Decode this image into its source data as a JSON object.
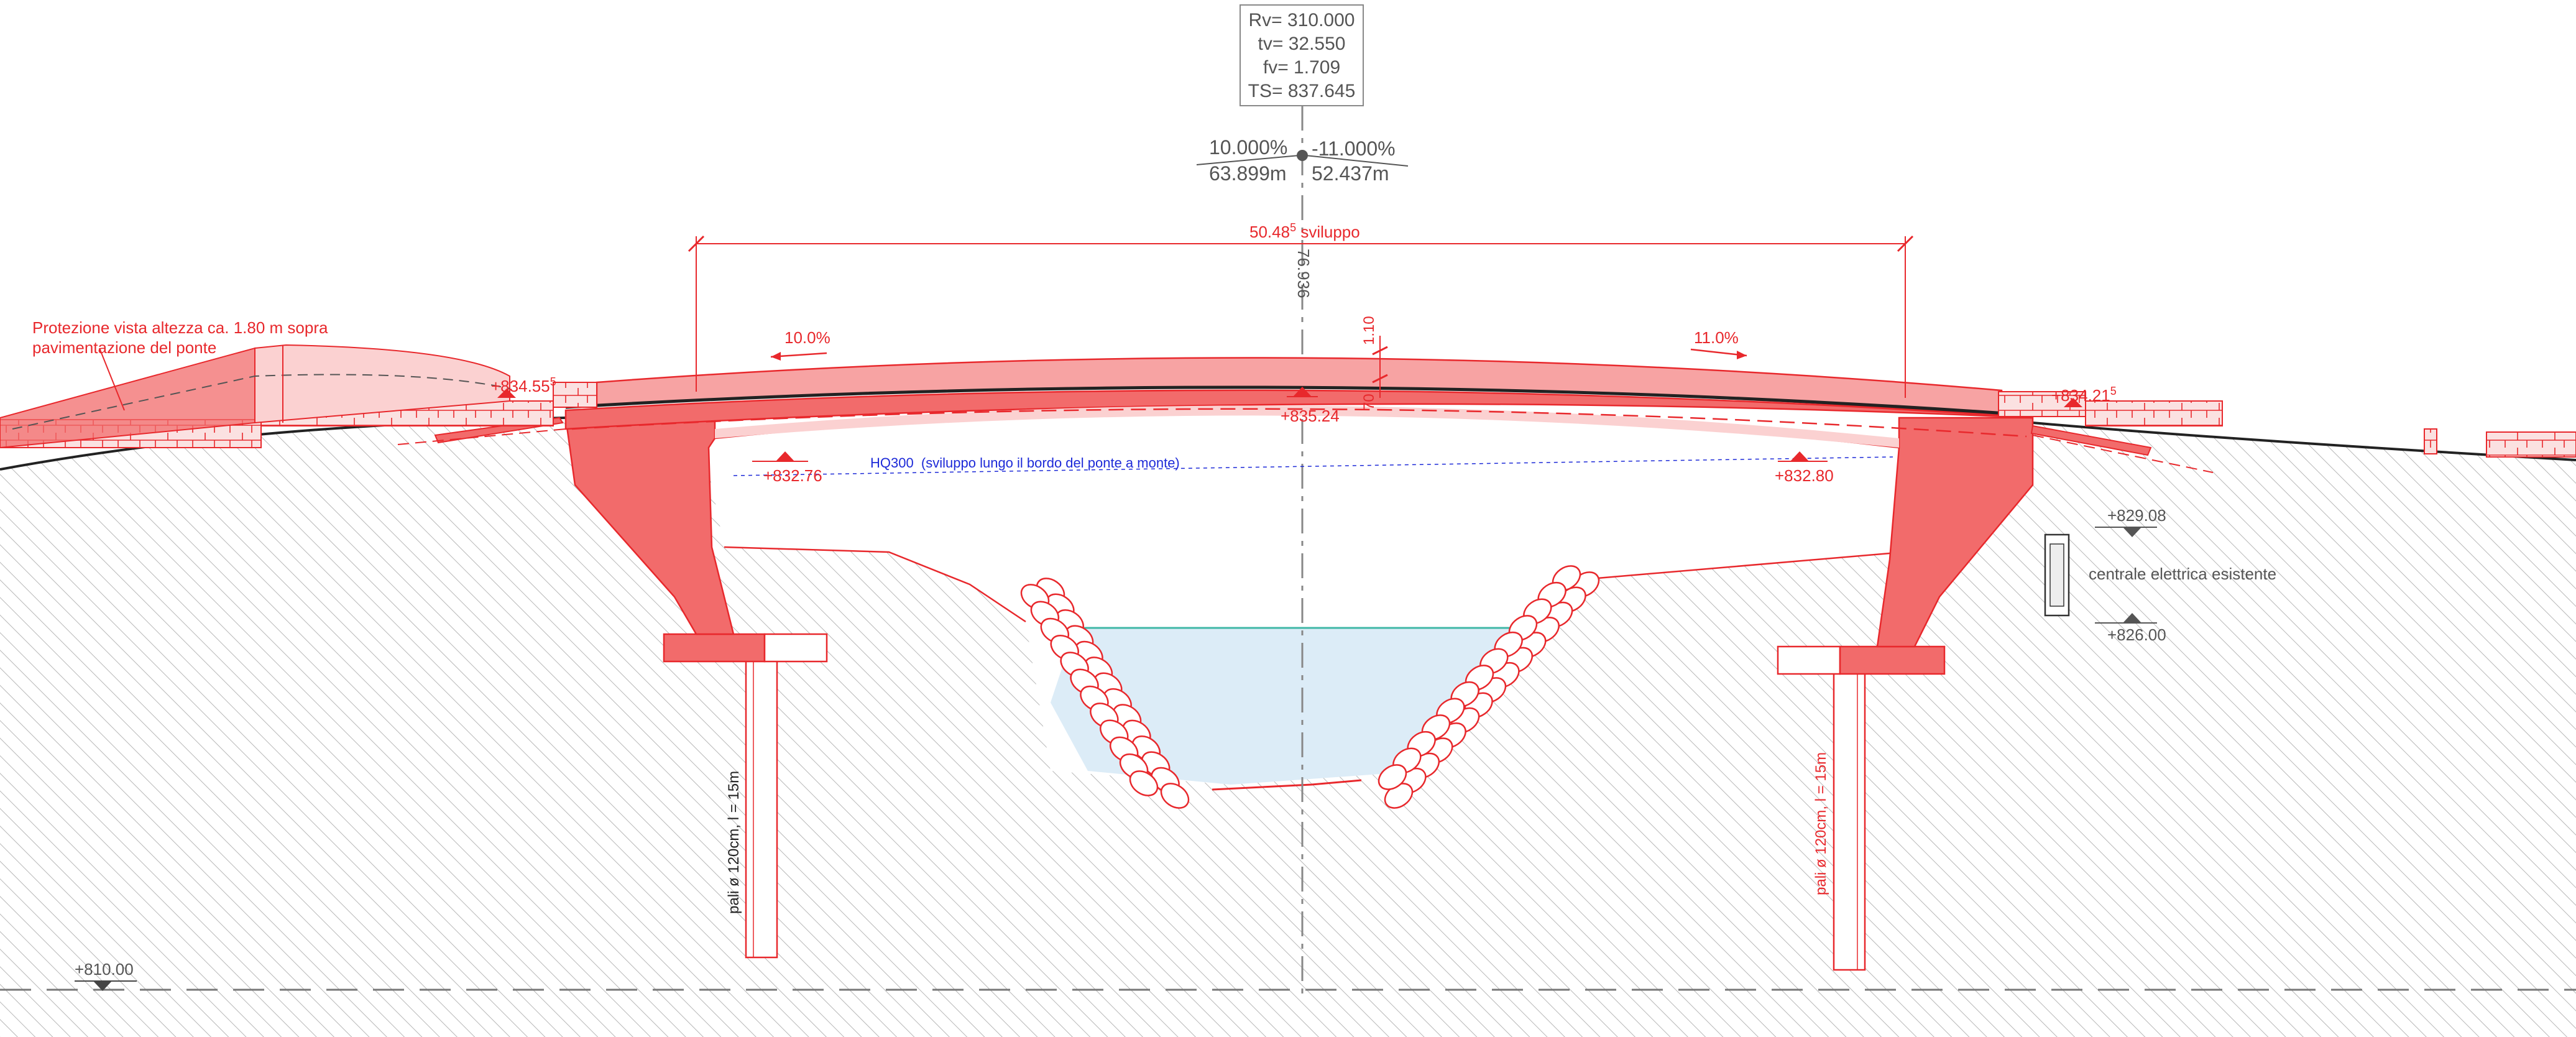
{
  "curve_box": {
    "lines": [
      "Rv= 310.000",
      "tv= 32.550",
      "fv= 1.709",
      "TS= 837.645"
    ]
  },
  "grades": {
    "left_grade": "10.000%",
    "left_length": "63.899m",
    "right_grade": "-11.000%",
    "right_length": "52.437m"
  },
  "axis_station": "76.936",
  "span": {
    "value": "50.48",
    "sup": "5",
    "suffix": " sviluppo"
  },
  "deck_grades": {
    "left": "10.0%",
    "right": "11.0%"
  },
  "deck_dims": {
    "depth_top": "1.10",
    "depth_mid": "70"
  },
  "note": {
    "line1": "Protezione vista altezza ca. 1.80 m sopra",
    "line2": "pavimentazione del ponte"
  },
  "levels": {
    "left_abutment": {
      "value": "+834.55",
      "sup": "5"
    },
    "right_abutment": {
      "value": "+834.21",
      "sup": "5"
    },
    "midspan": "+835.24",
    "soffit_left": "+832.76",
    "soffit_right": "+832.80",
    "building_top": "+829.08",
    "building_bottom": "+826.00",
    "datum": "+810.00"
  },
  "hq300": "HQ300  (sviluppo lungo il bordo del ponte a monte)",
  "building_label": "centrale elettrica esistente",
  "piles": {
    "left": "pali ø 120cm, l = 15m",
    "right": "pali ø 120cm, l = 15m"
  },
  "colors": {
    "red": "#e8282c",
    "pier_fill": "#f26b6b",
    "deck_fill": "#f7a3a3",
    "deck_light": "#fbd1d1",
    "water": "#dcecf7",
    "water_line": "#3fb7a6",
    "blue_text": "#1d2ad8",
    "gray_text": "#555555"
  }
}
